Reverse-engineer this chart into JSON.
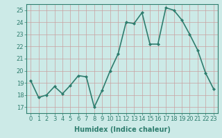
{
  "x": [
    0,
    1,
    2,
    3,
    4,
    5,
    6,
    7,
    8,
    9,
    10,
    11,
    12,
    13,
    14,
    15,
    16,
    17,
    18,
    19,
    20,
    21,
    22,
    23
  ],
  "y": [
    19.2,
    17.8,
    18.0,
    18.7,
    18.1,
    18.8,
    19.6,
    19.5,
    17.0,
    18.4,
    20.0,
    21.4,
    24.0,
    23.9,
    24.8,
    22.2,
    22.2,
    25.2,
    25.0,
    24.2,
    23.0,
    21.7,
    19.8,
    18.5
  ],
  "line_color": "#2e7d6e",
  "marker": "D",
  "marker_size": 2,
  "bg_color": "#cceae7",
  "grid_color": "#b0d0cc",
  "xlabel": "Humidex (Indice chaleur)",
  "ylim": [
    16.5,
    25.5
  ],
  "yticks": [
    17,
    18,
    19,
    20,
    21,
    22,
    23,
    24,
    25
  ],
  "xticks": [
    0,
    1,
    2,
    3,
    4,
    5,
    6,
    7,
    8,
    9,
    10,
    11,
    12,
    13,
    14,
    15,
    16,
    17,
    18,
    19,
    20,
    21,
    22,
    23
  ],
  "xlabel_fontsize": 7,
  "tick_fontsize": 6,
  "line_width": 1.2
}
